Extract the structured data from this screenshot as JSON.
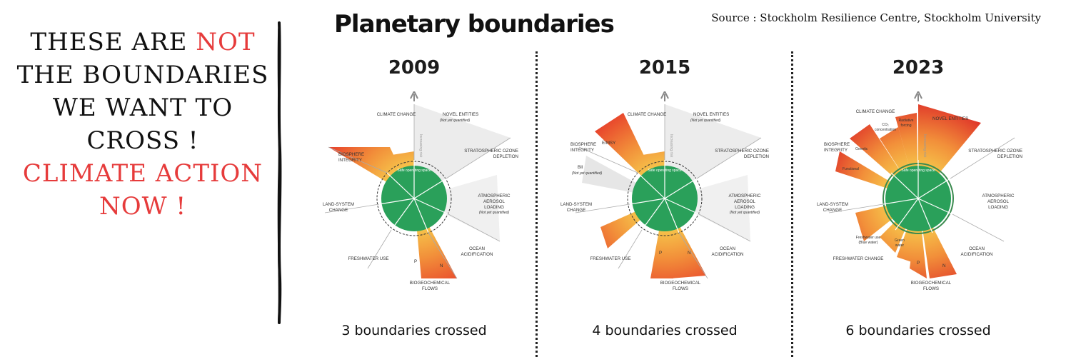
{
  "slogan": {
    "line1_pre": "THESE ARE ",
    "line1_red": "NOT",
    "line2": "THE BOUNDARIES",
    "line3": "WE WANT TO",
    "line4": "CROSS !",
    "line5": "CLIMATE ACTION",
    "line6": "NOW !"
  },
  "header": {
    "title": "Planetary boundaries",
    "source": "Source : Stockholm Resilience Centre, Stockholm University"
  },
  "colors": {
    "red": "#e63b3b",
    "safe_green": "#2aa05a",
    "exceed_orange": "#f3a33a",
    "high_risk_red": "#e8452c",
    "not_quantified_grey": "#dcdcdc"
  },
  "panels": [
    {
      "year": "2009",
      "caption": "3 boundaries crossed",
      "labels": {
        "climate": "CLIMATE CHANGE",
        "novel": "NOVEL ENTITIES",
        "novel_note": "(Not yet quantified)",
        "ozone_1": "STRATOSPHERIC OZONE",
        "ozone_2": "DEPLETION",
        "aerosol_1": "ATMOSPHERIC",
        "aerosol_2": "AEROSOL",
        "aerosol_3": "LOADING",
        "aerosol_note": "(Not yet quantified)",
        "ocean_1": "OCEAN",
        "ocean_2": "ACIDIFICATION",
        "biogeo_1": "BIOGEOCHEMICAL",
        "biogeo_2": "FLOWS",
        "p": "P",
        "n": "N",
        "fresh": "FRESHWATER USE",
        "land_1": "LAND-SYSTEM",
        "land_2": "CHANGE",
        "bio_1": "BIOSPHERE",
        "bio_2": "INTEGRITY",
        "axis": "Increasing risk",
        "safe": "Safe operating space"
      }
    },
    {
      "year": "2015",
      "caption": "4 boundaries crossed",
      "labels": {
        "climate": "CLIMATE CHANGE",
        "novel": "NOVEL ENTITIES",
        "novel_note": "(Not yet quantified)",
        "ozone_1": "STRATOSPHERIC OZONE",
        "ozone_2": "DEPLETION",
        "aerosol_1": "ATMOSPHERIC",
        "aerosol_2": "AEROSOL",
        "aerosol_3": "LOADING",
        "aerosol_note": "(Not yet quantified)",
        "ocean_1": "OCEAN",
        "ocean_2": "ACIDIFICATION",
        "biogeo_1": "BIOGEOCHEMICAL",
        "biogeo_2": "FLOWS",
        "p": "P",
        "n": "N",
        "fresh": "FRESHWATER USE",
        "land_1": "LAND-SYSTEM",
        "land_2": "CHANGE",
        "bio_1": "BIOSPHERE",
        "bio_2": "INTEGRITY",
        "emsy": "E/MSY",
        "bii": "BII",
        "bii_note": "(Not yet quantified)",
        "axis": "Increasing risk",
        "safe": "Safe operating space"
      }
    },
    {
      "year": "2023",
      "caption": "6 boundaries crossed",
      "labels": {
        "climate": "CLIMATE CHANGE",
        "co2_1": "CO₂",
        "co2_2": "concentration",
        "rad_1": "Radiative",
        "rad_2": "forcing",
        "novel": "NOVEL ENTITIES",
        "ozone_1": "STRATOSPHERIC OZONE",
        "ozone_2": "DEPLETION",
        "aerosol_1": "ATMOSPHERIC",
        "aerosol_2": "AEROSOL",
        "aerosol_3": "LOADING",
        "ocean_1": "OCEAN",
        "ocean_2": "ACIDIFICATION",
        "biogeo_1": "BIOGEOCHEMICAL",
        "biogeo_2": "FLOWS",
        "p": "P",
        "n": "N",
        "fresh": "FRESHWATER CHANGE",
        "blue_1": "Freshwater use",
        "blue_2": "(Blue water)",
        "green_1": "Green",
        "green_2": "water",
        "land_1": "LAND-SYSTEM",
        "land_2": "CHANGE",
        "bio_1": "BIOSPHERE",
        "bio_2": "INTEGRITY",
        "genetic": "Genetic",
        "functional": "Functional",
        "axis": "Increasing risk",
        "safe": "Safe operating space"
      }
    }
  ]
}
